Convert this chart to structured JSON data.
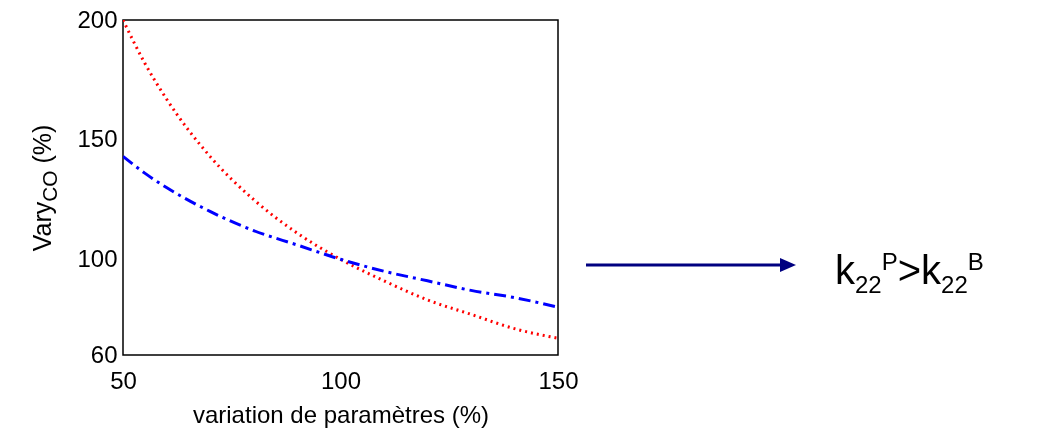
{
  "chart_data": {
    "type": "line",
    "xlabel": "variation de paramètres (%)",
    "ylabel": "Vary$_{CO}$ (%)",
    "x": [
      50,
      55,
      60,
      70,
      80,
      90,
      100,
      110,
      120,
      130,
      140,
      150
    ],
    "series": [
      {
        "color": "#ff0000",
        "line_style": "dotted",
        "values": [
          200,
          182,
          167,
          143,
          125,
          111,
          100,
          91,
          83,
          77,
          71,
          67
        ]
      },
      {
        "color": "#0000ff",
        "line_style": "dashed",
        "values": [
          143,
          136,
          130,
          120,
          112,
          106,
          100,
          95,
          91,
          87,
          84,
          80
        ]
      }
    ],
    "xlim": [
      50,
      150
    ],
    "xticks": [
      50,
      100,
      150
    ],
    "ylim": [
      60,
      200
    ],
    "yticks": [
      60,
      100,
      150,
      200
    ],
    "grid": false,
    "marker": "none",
    "annotations": [
      "k$_{22}$$^{P}$>k$_{22}$$^{B}$"
    ]
  }
}
